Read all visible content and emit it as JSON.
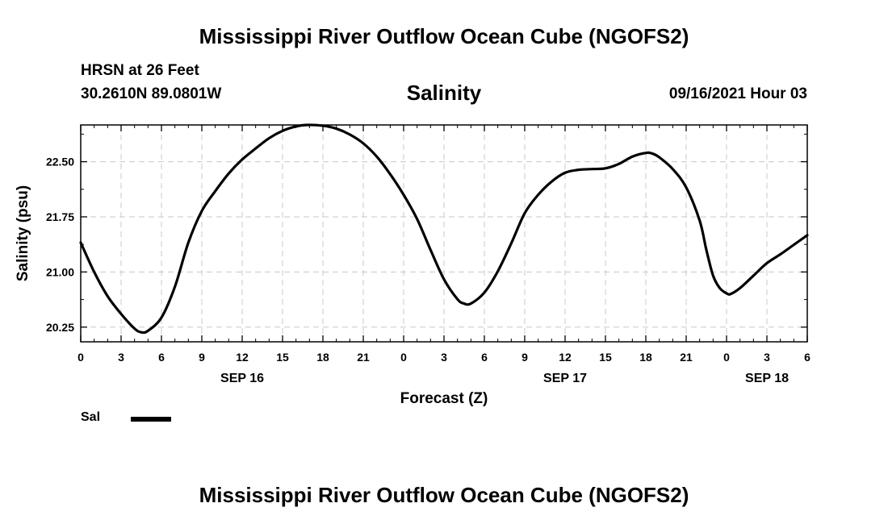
{
  "header": {
    "title": "Mississippi River Outflow Ocean Cube (NGOFS2)",
    "station": "HRSN at 26 Feet",
    "coords": "30.2610N  89.0801W",
    "parameter": "Salinity",
    "datetime": "09/16/2021 Hour 03"
  },
  "footer": {
    "title": "Mississippi River Outflow Ocean Cube (NGOFS2)"
  },
  "chart_data": {
    "type": "line",
    "title": "Salinity",
    "xlabel": "Forecast (Z)",
    "ylabel": "Salinity (psu)",
    "xlim": [
      0,
      54
    ],
    "ylim": [
      20.05,
      23.0
    ],
    "x_ticks": [
      0,
      3,
      6,
      9,
      12,
      15,
      18,
      21,
      24,
      27,
      30,
      33,
      36,
      39,
      42,
      45,
      48,
      51,
      54
    ],
    "x_tick_labels": [
      "0",
      "3",
      "6",
      "9",
      "12",
      "15",
      "18",
      "21",
      "0",
      "3",
      "6",
      "9",
      "12",
      "15",
      "18",
      "21",
      "0",
      "3",
      "6"
    ],
    "y_ticks": [
      20.25,
      21.0,
      21.75,
      22.5
    ],
    "y_tick_labels": [
      "20.25",
      "21.00",
      "21.75",
      "22.50"
    ],
    "date_labels": [
      {
        "x": 12,
        "label": "SEP 16"
      },
      {
        "x": 36,
        "label": "SEP 17"
      },
      {
        "x": 51,
        "label": "SEP 18"
      }
    ],
    "grid": true,
    "legend_position": "bottom-left",
    "series": [
      {
        "name": "Sal",
        "color": "#000000",
        "x": [
          0,
          1,
          2,
          3,
          4,
          4.5,
          5,
          6,
          7,
          8,
          9,
          10,
          11,
          12,
          13,
          14,
          15,
          16,
          16.8,
          18,
          19,
          20,
          21,
          22,
          23,
          24,
          25,
          26,
          27,
          28,
          28.5,
          29,
          30,
          31,
          32,
          33,
          34,
          35,
          36,
          37,
          38,
          39,
          40,
          41,
          42,
          42.5,
          43,
          44,
          45,
          46,
          46.5,
          47,
          47.5,
          48,
          48.3,
          49,
          50,
          51,
          52,
          53,
          54
        ],
        "y": [
          21.4,
          21.0,
          20.67,
          20.43,
          20.23,
          20.18,
          20.2,
          20.38,
          20.8,
          21.4,
          21.83,
          22.1,
          22.34,
          22.53,
          22.68,
          22.82,
          22.92,
          22.98,
          23.0,
          22.99,
          22.95,
          22.87,
          22.75,
          22.57,
          22.33,
          22.05,
          21.72,
          21.3,
          20.9,
          20.63,
          20.57,
          20.57,
          20.72,
          21.01,
          21.39,
          21.8,
          22.05,
          22.23,
          22.35,
          22.39,
          22.4,
          22.41,
          22.47,
          22.57,
          22.62,
          22.61,
          22.56,
          22.4,
          22.15,
          21.7,
          21.3,
          20.95,
          20.78,
          20.71,
          20.7,
          20.78,
          20.95,
          21.12,
          21.24,
          21.37,
          21.5
        ]
      }
    ]
  }
}
